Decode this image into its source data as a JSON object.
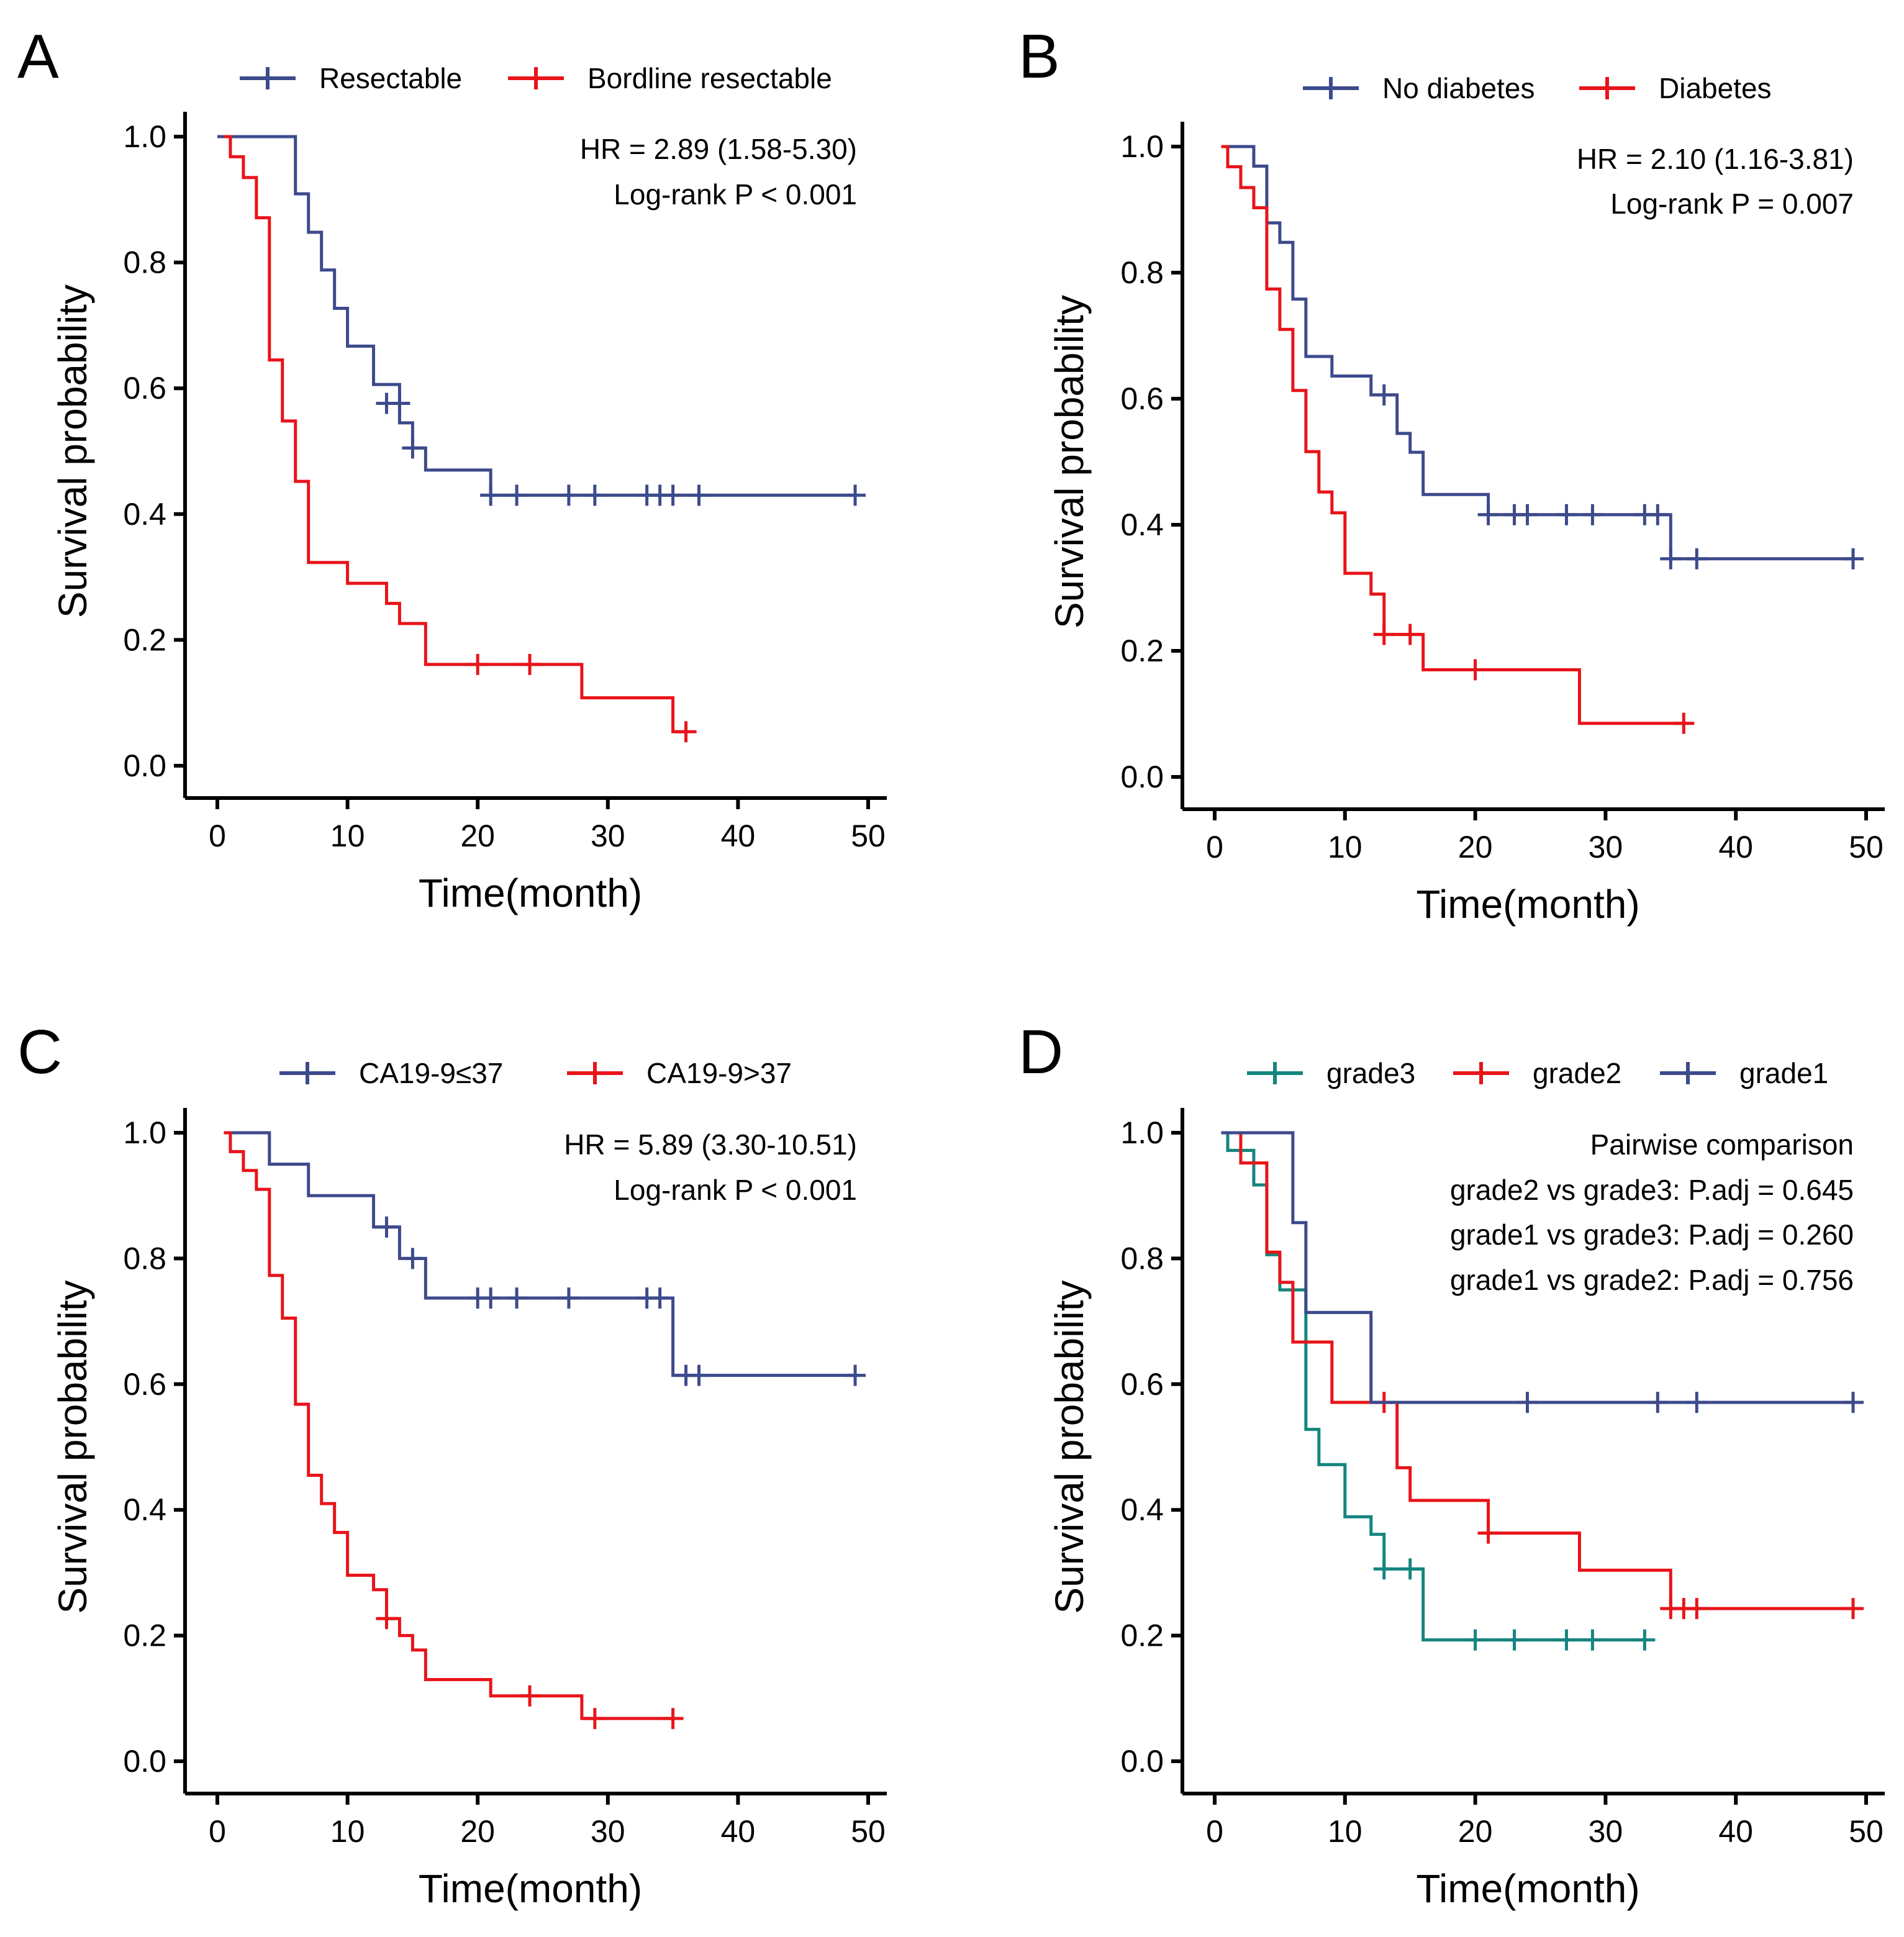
{
  "colors": {
    "blue": "#3D4A8C",
    "red": "#E8141A",
    "teal": "#14857E"
  },
  "chart_data": [
    {
      "type": "line",
      "panel": "A",
      "xlabel": "Time(month)",
      "ylabel": "Survival probability",
      "xlim": [
        0,
        50
      ],
      "ylim": [
        0,
        1
      ],
      "xticks": [
        0,
        10,
        20,
        30,
        40,
        50
      ],
      "yticks": [
        "0.0",
        "0.2",
        "0.4",
        "0.6",
        "0.8",
        "1.0"
      ],
      "annotations": [
        "HR = 2.89 (1.58-5.30)",
        "Log-rank P < 0.001"
      ],
      "series": [
        {
          "name": "Resectable",
          "color": "#3D4A8C",
          "steps": [
            [
              0,
              1.0
            ],
            [
              6,
              0.909
            ],
            [
              7,
              0.848
            ],
            [
              8,
              0.788
            ],
            [
              9,
              0.727
            ],
            [
              10,
              0.667
            ],
            [
              12,
              0.606
            ],
            [
              14,
              0.545
            ],
            [
              15,
              0.505
            ],
            [
              16,
              0.47
            ],
            [
              21,
              0.43
            ],
            [
              49,
              0.43
            ]
          ],
          "censors": [
            [
              13,
              0.576
            ],
            [
              14,
              0.576
            ],
            [
              15,
              0.505
            ],
            [
              21,
              0.43
            ],
            [
              23,
              0.43
            ],
            [
              27,
              0.43
            ],
            [
              29,
              0.43
            ],
            [
              33,
              0.43
            ],
            [
              34,
              0.43
            ],
            [
              35,
              0.43
            ],
            [
              37,
              0.43
            ],
            [
              49,
              0.43
            ]
          ]
        },
        {
          "name": "Bordline resectable",
          "color": "#E8141A",
          "steps": [
            [
              0.5,
              1.0
            ],
            [
              1,
              0.968
            ],
            [
              2,
              0.935
            ],
            [
              3,
              0.871
            ],
            [
              4,
              0.645
            ],
            [
              5,
              0.548
            ],
            [
              6,
              0.452
            ],
            [
              7,
              0.323
            ],
            [
              10,
              0.29
            ],
            [
              13,
              0.258
            ],
            [
              14,
              0.226
            ],
            [
              16,
              0.161
            ],
            [
              28,
              0.108
            ],
            [
              35,
              0.054
            ],
            [
              36,
              0.054
            ]
          ],
          "censors": [
            [
              20,
              0.161
            ],
            [
              24,
              0.161
            ],
            [
              36,
              0.054
            ]
          ]
        }
      ]
    },
    {
      "type": "line",
      "panel": "B",
      "xlabel": "Time(month)",
      "ylabel": "Survival probability",
      "xlim": [
        0,
        50
      ],
      "ylim": [
        0,
        1
      ],
      "xticks": [
        0,
        10,
        20,
        30,
        40,
        50
      ],
      "yticks": [
        "0.0",
        "0.2",
        "0.4",
        "0.6",
        "0.8",
        "1.0"
      ],
      "annotations": [
        "HR = 2.10 (1.16-3.81)",
        "Log-rank P = 0.007"
      ],
      "series": [
        {
          "name": "No diabetes",
          "color": "#3D4A8C",
          "steps": [
            [
              0.5,
              1.0
            ],
            [
              3,
              0.969
            ],
            [
              4,
              0.879
            ],
            [
              5,
              0.848
            ],
            [
              6,
              0.758
            ],
            [
              7,
              0.667
            ],
            [
              9,
              0.636
            ],
            [
              12,
              0.606
            ],
            [
              14,
              0.545
            ],
            [
              15,
              0.515
            ],
            [
              16,
              0.448
            ],
            [
              21,
              0.416
            ],
            [
              35,
              0.346
            ],
            [
              49,
              0.346
            ]
          ],
          "censors": [
            [
              13,
              0.606
            ],
            [
              21,
              0.416
            ],
            [
              23,
              0.416
            ],
            [
              24,
              0.416
            ],
            [
              27,
              0.416
            ],
            [
              29,
              0.416
            ],
            [
              33,
              0.416
            ],
            [
              34,
              0.416
            ],
            [
              35,
              0.346
            ],
            [
              37,
              0.346
            ],
            [
              49,
              0.346
            ]
          ]
        },
        {
          "name": "Diabetes",
          "color": "#E8141A",
          "steps": [
            [
              0.5,
              1.0
            ],
            [
              1,
              0.968
            ],
            [
              2,
              0.935
            ],
            [
              3,
              0.903
            ],
            [
              4,
              0.774
            ],
            [
              5,
              0.71
            ],
            [
              6,
              0.613
            ],
            [
              7,
              0.516
            ],
            [
              8,
              0.452
            ],
            [
              9,
              0.419
            ],
            [
              10,
              0.323
            ],
            [
              12,
              0.29
            ],
            [
              13,
              0.226
            ],
            [
              16,
              0.17
            ],
            [
              28,
              0.085
            ],
            [
              36,
              0.085
            ]
          ],
          "censors": [
            [
              13,
              0.226
            ],
            [
              15,
              0.226
            ],
            [
              20,
              0.17
            ],
            [
              36,
              0.085
            ]
          ]
        }
      ]
    },
    {
      "type": "line",
      "panel": "C",
      "xlabel": "Time(month)",
      "ylabel": "Survival probability",
      "xlim": [
        0,
        50
      ],
      "ylim": [
        0,
        1
      ],
      "xticks": [
        0,
        10,
        20,
        30,
        40,
        50
      ],
      "yticks": [
        "0.0",
        "0.2",
        "0.4",
        "0.6",
        "0.8",
        "1.0"
      ],
      "annotations": [
        "HR = 5.89 (3.30-10.51)",
        "Log-rank P < 0.001"
      ],
      "series": [
        {
          "name": "CA19-9≤37",
          "color": "#3D4A8C",
          "steps": [
            [
              0.5,
              1.0
            ],
            [
              4,
              0.95
            ],
            [
              7,
              0.9
            ],
            [
              12,
              0.85
            ],
            [
              14,
              0.8
            ],
            [
              16,
              0.737
            ],
            [
              35,
              0.614
            ],
            [
              49,
              0.614
            ]
          ],
          "censors": [
            [
              13,
              0.85
            ],
            [
              15,
              0.8
            ],
            [
              20,
              0.737
            ],
            [
              21,
              0.737
            ],
            [
              23,
              0.737
            ],
            [
              27,
              0.737
            ],
            [
              33,
              0.737
            ],
            [
              34,
              0.737
            ],
            [
              36,
              0.614
            ],
            [
              37,
              0.614
            ],
            [
              49,
              0.614
            ]
          ]
        },
        {
          "name": "CA19-9>37",
          "color": "#E8141A",
          "steps": [
            [
              0.5,
              1.0
            ],
            [
              1,
              0.97
            ],
            [
              2,
              0.94
            ],
            [
              3,
              0.91
            ],
            [
              4,
              0.773
            ],
            [
              5,
              0.705
            ],
            [
              6,
              0.568
            ],
            [
              7,
              0.455
            ],
            [
              8,
              0.41
            ],
            [
              9,
              0.364
            ],
            [
              10,
              0.296
            ],
            [
              12,
              0.273
            ],
            [
              13,
              0.227
            ],
            [
              14,
              0.2
            ],
            [
              15,
              0.177
            ],
            [
              16,
              0.13
            ],
            [
              21,
              0.104
            ],
            [
              28,
              0.068
            ],
            [
              35,
              0.068
            ]
          ],
          "censors": [
            [
              13,
              0.227
            ],
            [
              24,
              0.104
            ],
            [
              29,
              0.068
            ],
            [
              35,
              0.068
            ]
          ]
        }
      ]
    },
    {
      "type": "line",
      "panel": "D",
      "xlabel": "Time(month)",
      "ylabel": "Survival probability",
      "xlim": [
        0,
        50
      ],
      "ylim": [
        0,
        1
      ],
      "xticks": [
        0,
        10,
        20,
        30,
        40,
        50
      ],
      "yticks": [
        "0.0",
        "0.2",
        "0.4",
        "0.6",
        "0.8",
        "1.0"
      ],
      "annotations": [
        "Pairwise comparison",
        "grade2 vs grade3: P.adj = 0.645",
        "grade1 vs grade3: P.adj = 0.260",
        "grade1 vs grade2: P.adj = 0.756"
      ],
      "series": [
        {
          "name": "grade3",
          "color": "#14857E",
          "steps": [
            [
              0.5,
              1.0
            ],
            [
              1,
              0.972
            ],
            [
              3,
              0.917
            ],
            [
              4,
              0.806
            ],
            [
              5,
              0.75
            ],
            [
              7,
              0.528
            ],
            [
              8,
              0.472
            ],
            [
              10,
              0.389
            ],
            [
              12,
              0.361
            ],
            [
              13,
              0.306
            ],
            [
              16,
              0.193
            ],
            [
              33,
              0.193
            ]
          ],
          "censors": [
            [
              13,
              0.306
            ],
            [
              15,
              0.306
            ],
            [
              20,
              0.193
            ],
            [
              23,
              0.193
            ],
            [
              27,
              0.193
            ],
            [
              29,
              0.193
            ],
            [
              33,
              0.193
            ]
          ]
        },
        {
          "name": "grade2",
          "color": "#E8141A",
          "steps": [
            [
              0.5,
              1.0
            ],
            [
              2,
              0.952
            ],
            [
              4,
              0.81
            ],
            [
              5,
              0.762
            ],
            [
              6,
              0.667
            ],
            [
              9,
              0.571
            ],
            [
              14,
              0.467
            ],
            [
              15,
              0.415
            ],
            [
              21,
              0.363
            ],
            [
              28,
              0.304
            ],
            [
              35,
              0.243
            ],
            [
              49,
              0.243
            ]
          ],
          "censors": [
            [
              13,
              0.571
            ],
            [
              21,
              0.363
            ],
            [
              35,
              0.243
            ],
            [
              36,
              0.243
            ],
            [
              37,
              0.243
            ],
            [
              49,
              0.243
            ]
          ]
        },
        {
          "name": "grade1",
          "color": "#3D4A8C",
          "steps": [
            [
              0.5,
              1.0
            ],
            [
              6,
              0.857
            ],
            [
              7,
              0.714
            ],
            [
              12,
              0.571
            ],
            [
              49,
              0.571
            ]
          ],
          "censors": [
            [
              24,
              0.571
            ],
            [
              34,
              0.571
            ],
            [
              37,
              0.571
            ],
            [
              49,
              0.571
            ]
          ]
        }
      ]
    }
  ]
}
